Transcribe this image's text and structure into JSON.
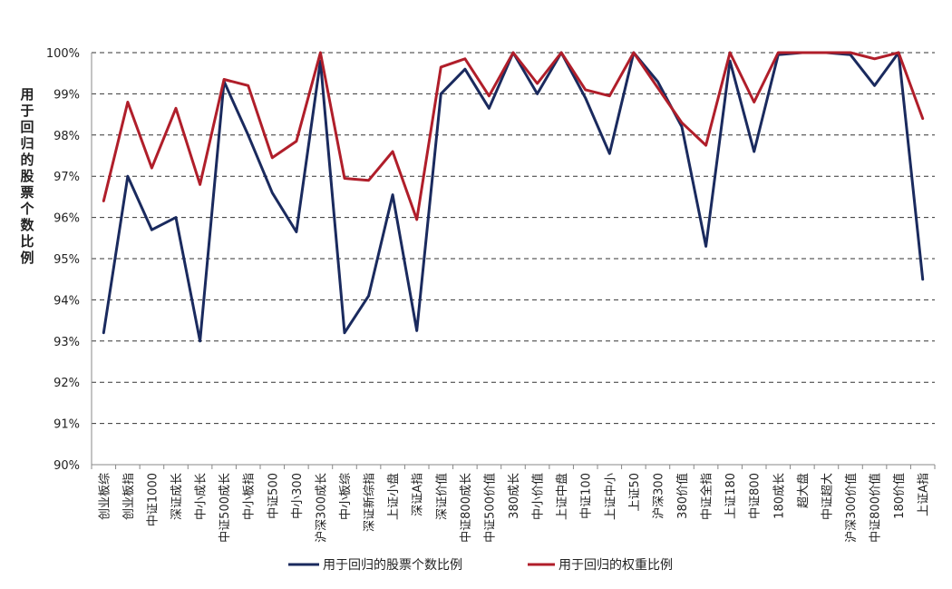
{
  "chart_data": {
    "type": "line",
    "title": "",
    "xlabel": "",
    "ylabel": "用于回归的股票个数比例",
    "ylim": [
      90,
      100
    ],
    "y_unit": "%",
    "y_ticks": [
      "90%",
      "91%",
      "92%",
      "93%",
      "94%",
      "95%",
      "96%",
      "97%",
      "98%",
      "99%",
      "100%"
    ],
    "grid": "horizontal-dashed",
    "legend_position": "bottom",
    "categories": [
      "创业板综",
      "创业板指",
      "中证1000",
      "深证成长",
      "中小成长",
      "中证500成长",
      "中小板指",
      "中证500",
      "中小300",
      "沪深300成长",
      "中小板综",
      "深证新综指",
      "上证小盘",
      "深证A指",
      "深证价值",
      "中证800成长",
      "中证500价值",
      "380成长",
      "中小价值",
      "上证中盘",
      "中证100",
      "上证中小",
      "上证50",
      "沪深300",
      "380价值",
      "中证全指",
      "上证180",
      "中证800",
      "180成长",
      "超大盘",
      "中证超大",
      "沪深300价值",
      "中证800价值",
      "180价值",
      "上证A指"
    ],
    "series": [
      {
        "name": "用于回归的股票个数比例",
        "color": "#1a2a5e",
        "values": [
          93.2,
          97.0,
          95.7,
          96.0,
          93.0,
          99.3,
          98.0,
          96.6,
          95.65,
          99.8,
          93.2,
          94.1,
          96.55,
          93.25,
          99.0,
          99.6,
          98.65,
          100.0,
          99.0,
          100.0,
          98.9,
          97.55,
          100.0,
          99.3,
          98.2,
          95.3,
          99.8,
          97.6,
          99.95,
          100.0,
          100.0,
          99.95,
          99.2,
          100.0,
          94.5
        ]
      },
      {
        "name": "用于回归的权重比例",
        "color": "#b01e2a",
        "values": [
          96.4,
          98.8,
          97.2,
          98.65,
          96.8,
          99.35,
          99.2,
          97.45,
          97.85,
          100.0,
          96.95,
          96.9,
          97.6,
          95.95,
          99.65,
          99.85,
          98.95,
          100.0,
          99.25,
          100.0,
          99.1,
          98.95,
          100.0,
          99.15,
          98.3,
          97.75,
          100.0,
          98.8,
          100.0,
          100.0,
          100.0,
          100.0,
          99.85,
          100.0,
          98.4
        ]
      }
    ]
  }
}
